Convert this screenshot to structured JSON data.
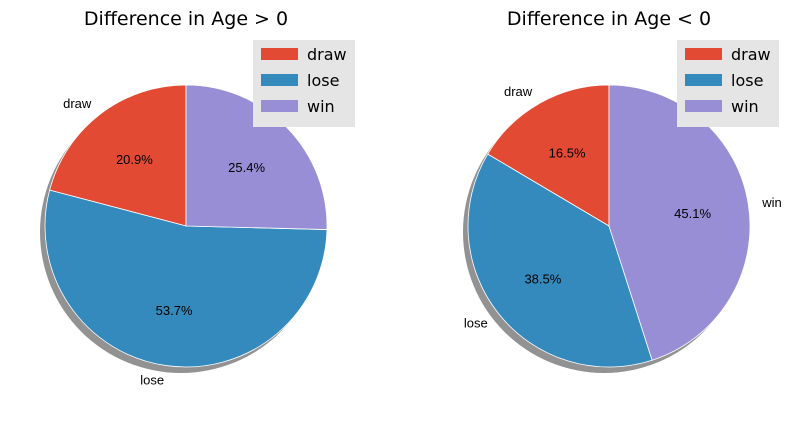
{
  "chart_data": [
    {
      "type": "pie",
      "title": "Difference in Age > 0",
      "categories": [
        "draw",
        "lose",
        "win"
      ],
      "values": [
        20.9,
        53.7,
        25.4
      ],
      "value_labels": [
        "20.9%",
        "53.7%",
        "25.4%"
      ],
      "colors": [
        "#E24A33",
        "#348ABD",
        "#988ED5"
      ],
      "start_angle": 90,
      "direction": "counterclockwise",
      "shadow": true,
      "legend": {
        "entries": [
          "draw",
          "lose",
          "win"
        ],
        "placement": "top-right"
      }
    },
    {
      "type": "pie",
      "title": "Difference in Age < 0",
      "categories": [
        "draw",
        "lose",
        "win"
      ],
      "values": [
        16.5,
        38.5,
        45.1
      ],
      "value_labels": [
        "16.5%",
        "38.5%",
        "45.1%"
      ],
      "colors": [
        "#E24A33",
        "#348ABD",
        "#988ED5"
      ],
      "start_angle": 90,
      "direction": "counterclockwise",
      "shadow": true,
      "legend": {
        "entries": [
          "draw",
          "lose",
          "win"
        ],
        "placement": "top-right"
      }
    }
  ]
}
